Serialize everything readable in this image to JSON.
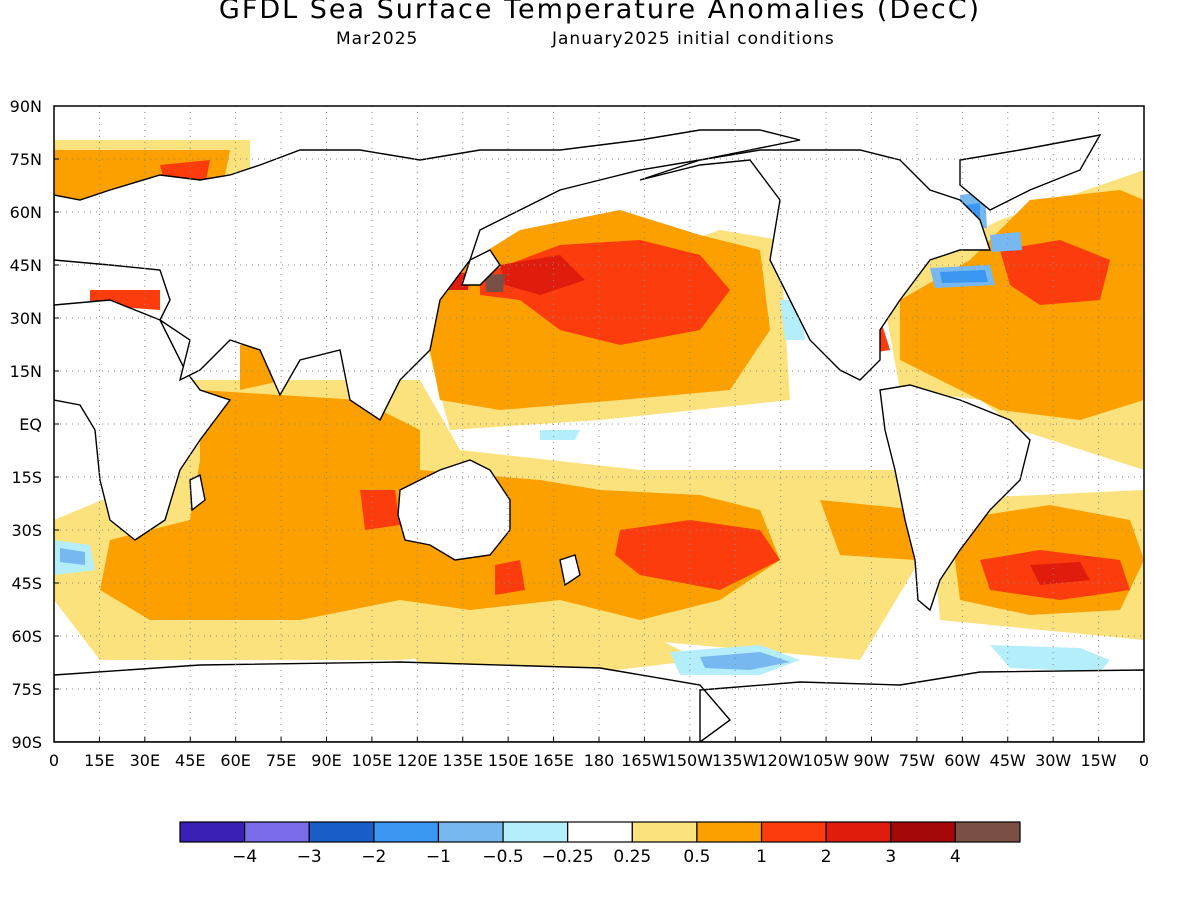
{
  "title": "GFDL Sea Surface Temperature Anomalies (DecC)",
  "subtitle_left": "Mar2025",
  "subtitle_right": "January2025 initial conditions",
  "lat_labels": [
    "90N",
    "75N",
    "60N",
    "45N",
    "30N",
    "15N",
    "EQ",
    "15S",
    "30S",
    "45S",
    "60S",
    "75S",
    "90S"
  ],
  "lon_labels": [
    "0",
    "15E",
    "30E",
    "45E",
    "60E",
    "75E",
    "90E",
    "105E",
    "120E",
    "135E",
    "150E",
    "165E",
    "180",
    "165W",
    "150W",
    "135W",
    "120W",
    "105W",
    "90W",
    "75W",
    "60W",
    "45W",
    "30W",
    "15W",
    "0"
  ],
  "colorbar": {
    "colors": [
      "#3a20b4",
      "#7a6ce8",
      "#1a5fc8",
      "#3a96f0",
      "#78b8f0",
      "#b4eefa",
      "#ffffff",
      "#fce27c",
      "#fca000",
      "#fc3c0c",
      "#e01c0c",
      "#a40808",
      "#7a5046"
    ],
    "labels": [
      "-4",
      "-3",
      "-2",
      "-1",
      "-0.5",
      "-0.25",
      "0.25",
      "0.5",
      "1",
      "2",
      "3",
      "4"
    ]
  }
}
